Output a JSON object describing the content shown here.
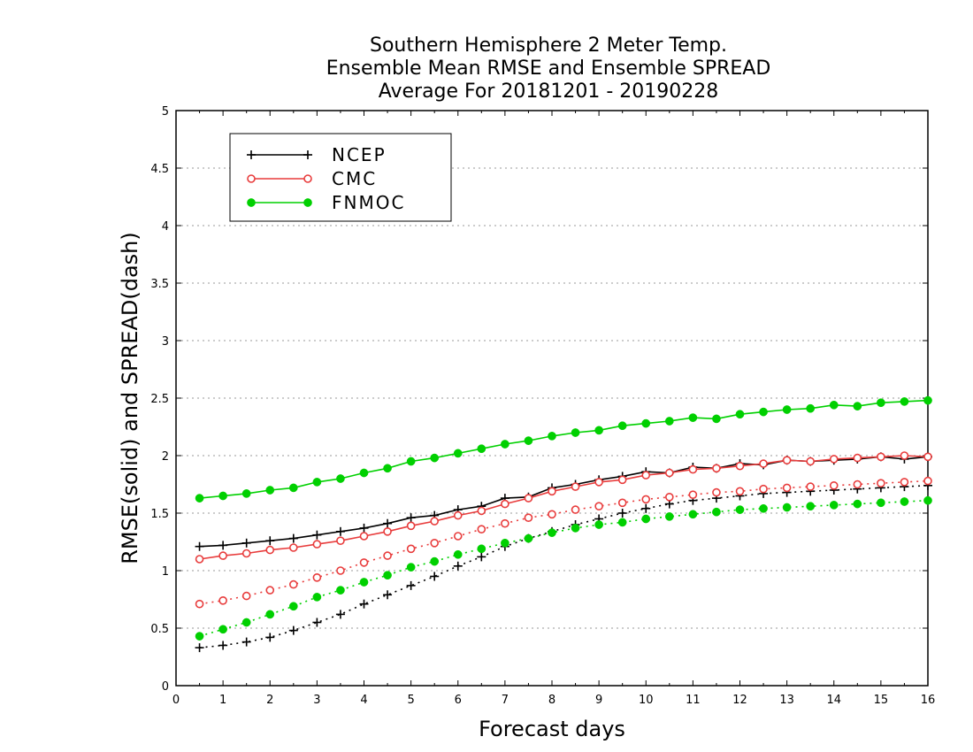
{
  "chart_data": {
    "type": "line",
    "title": [
      "Southern Hemisphere 2 Meter Temp.",
      "Ensemble Mean RMSE and Ensemble SPREAD",
      "Average For 20181201 - 20190228"
    ],
    "xlabel": "Forecast days",
    "ylabel": "RMSE(solid) and SPREAD(dash)",
    "xlim": [
      0,
      16
    ],
    "ylim": [
      0,
      5
    ],
    "xticks": [
      "0",
      "1",
      "2",
      "3",
      "4",
      "5",
      "6",
      "7",
      "8",
      "9",
      "10",
      "11",
      "12",
      "13",
      "14",
      "15",
      "16"
    ],
    "yticks": [
      "0",
      "0.5",
      "1",
      "1.5",
      "2",
      "2.5",
      "3",
      "3.5",
      "4",
      "4.5",
      "5"
    ],
    "grid": "horizontal dotted",
    "legend_position": "top-left",
    "x": [
      0.5,
      1,
      1.5,
      2,
      2.5,
      3,
      3.5,
      4,
      4.5,
      5,
      5.5,
      6,
      6.5,
      7,
      7.5,
      8,
      8.5,
      9,
      9.5,
      10,
      10.5,
      11,
      11.5,
      12,
      12.5,
      13,
      13.5,
      14,
      14.5,
      15,
      15.5,
      16
    ],
    "series": [
      {
        "name": "NCEP",
        "color": "#000000",
        "marker": "plus",
        "rmse": [
          1.21,
          1.22,
          1.24,
          1.26,
          1.28,
          1.31,
          1.34,
          1.37,
          1.41,
          1.46,
          1.48,
          1.53,
          1.56,
          1.63,
          1.64,
          1.72,
          1.75,
          1.79,
          1.82,
          1.86,
          1.85,
          1.9,
          1.89,
          1.93,
          1.92,
          1.96,
          1.95,
          1.96,
          1.97,
          1.99,
          1.97,
          1.99
        ],
        "spread": [
          0.33,
          0.35,
          0.38,
          0.42,
          0.48,
          0.55,
          0.62,
          0.71,
          0.79,
          0.87,
          0.95,
          1.04,
          1.12,
          1.21,
          1.28,
          1.34,
          1.4,
          1.45,
          1.5,
          1.54,
          1.58,
          1.61,
          1.63,
          1.65,
          1.67,
          1.68,
          1.69,
          1.7,
          1.71,
          1.72,
          1.73,
          1.74
        ]
      },
      {
        "name": "CMC",
        "color": "#e83c3c",
        "marker": "circle",
        "rmse": [
          1.1,
          1.13,
          1.15,
          1.18,
          1.2,
          1.23,
          1.26,
          1.3,
          1.34,
          1.39,
          1.43,
          1.48,
          1.52,
          1.58,
          1.63,
          1.69,
          1.73,
          1.77,
          1.79,
          1.83,
          1.85,
          1.88,
          1.89,
          1.91,
          1.93,
          1.96,
          1.95,
          1.97,
          1.98,
          1.99,
          2.0,
          1.99
        ],
        "spread": [
          0.71,
          0.74,
          0.78,
          0.83,
          0.88,
          0.94,
          1.0,
          1.07,
          1.13,
          1.19,
          1.24,
          1.3,
          1.36,
          1.41,
          1.46,
          1.49,
          1.53,
          1.56,
          1.59,
          1.62,
          1.64,
          1.66,
          1.68,
          1.69,
          1.71,
          1.72,
          1.73,
          1.74,
          1.75,
          1.76,
          1.77,
          1.78
        ]
      },
      {
        "name": "FNMOC",
        "color": "#00d000",
        "marker": "dot",
        "rmse": [
          1.63,
          1.65,
          1.67,
          1.7,
          1.72,
          1.77,
          1.8,
          1.85,
          1.89,
          1.95,
          1.98,
          2.02,
          2.06,
          2.1,
          2.13,
          2.17,
          2.2,
          2.22,
          2.26,
          2.28,
          2.3,
          2.33,
          2.32,
          2.36,
          2.38,
          2.4,
          2.41,
          2.44,
          2.43,
          2.46,
          2.47,
          2.48
        ],
        "spread": [
          0.43,
          0.49,
          0.55,
          0.62,
          0.69,
          0.77,
          0.83,
          0.9,
          0.96,
          1.03,
          1.08,
          1.14,
          1.19,
          1.24,
          1.28,
          1.33,
          1.37,
          1.4,
          1.42,
          1.45,
          1.47,
          1.49,
          1.51,
          1.53,
          1.54,
          1.55,
          1.56,
          1.57,
          1.58,
          1.59,
          1.6,
          1.61
        ]
      }
    ]
  }
}
